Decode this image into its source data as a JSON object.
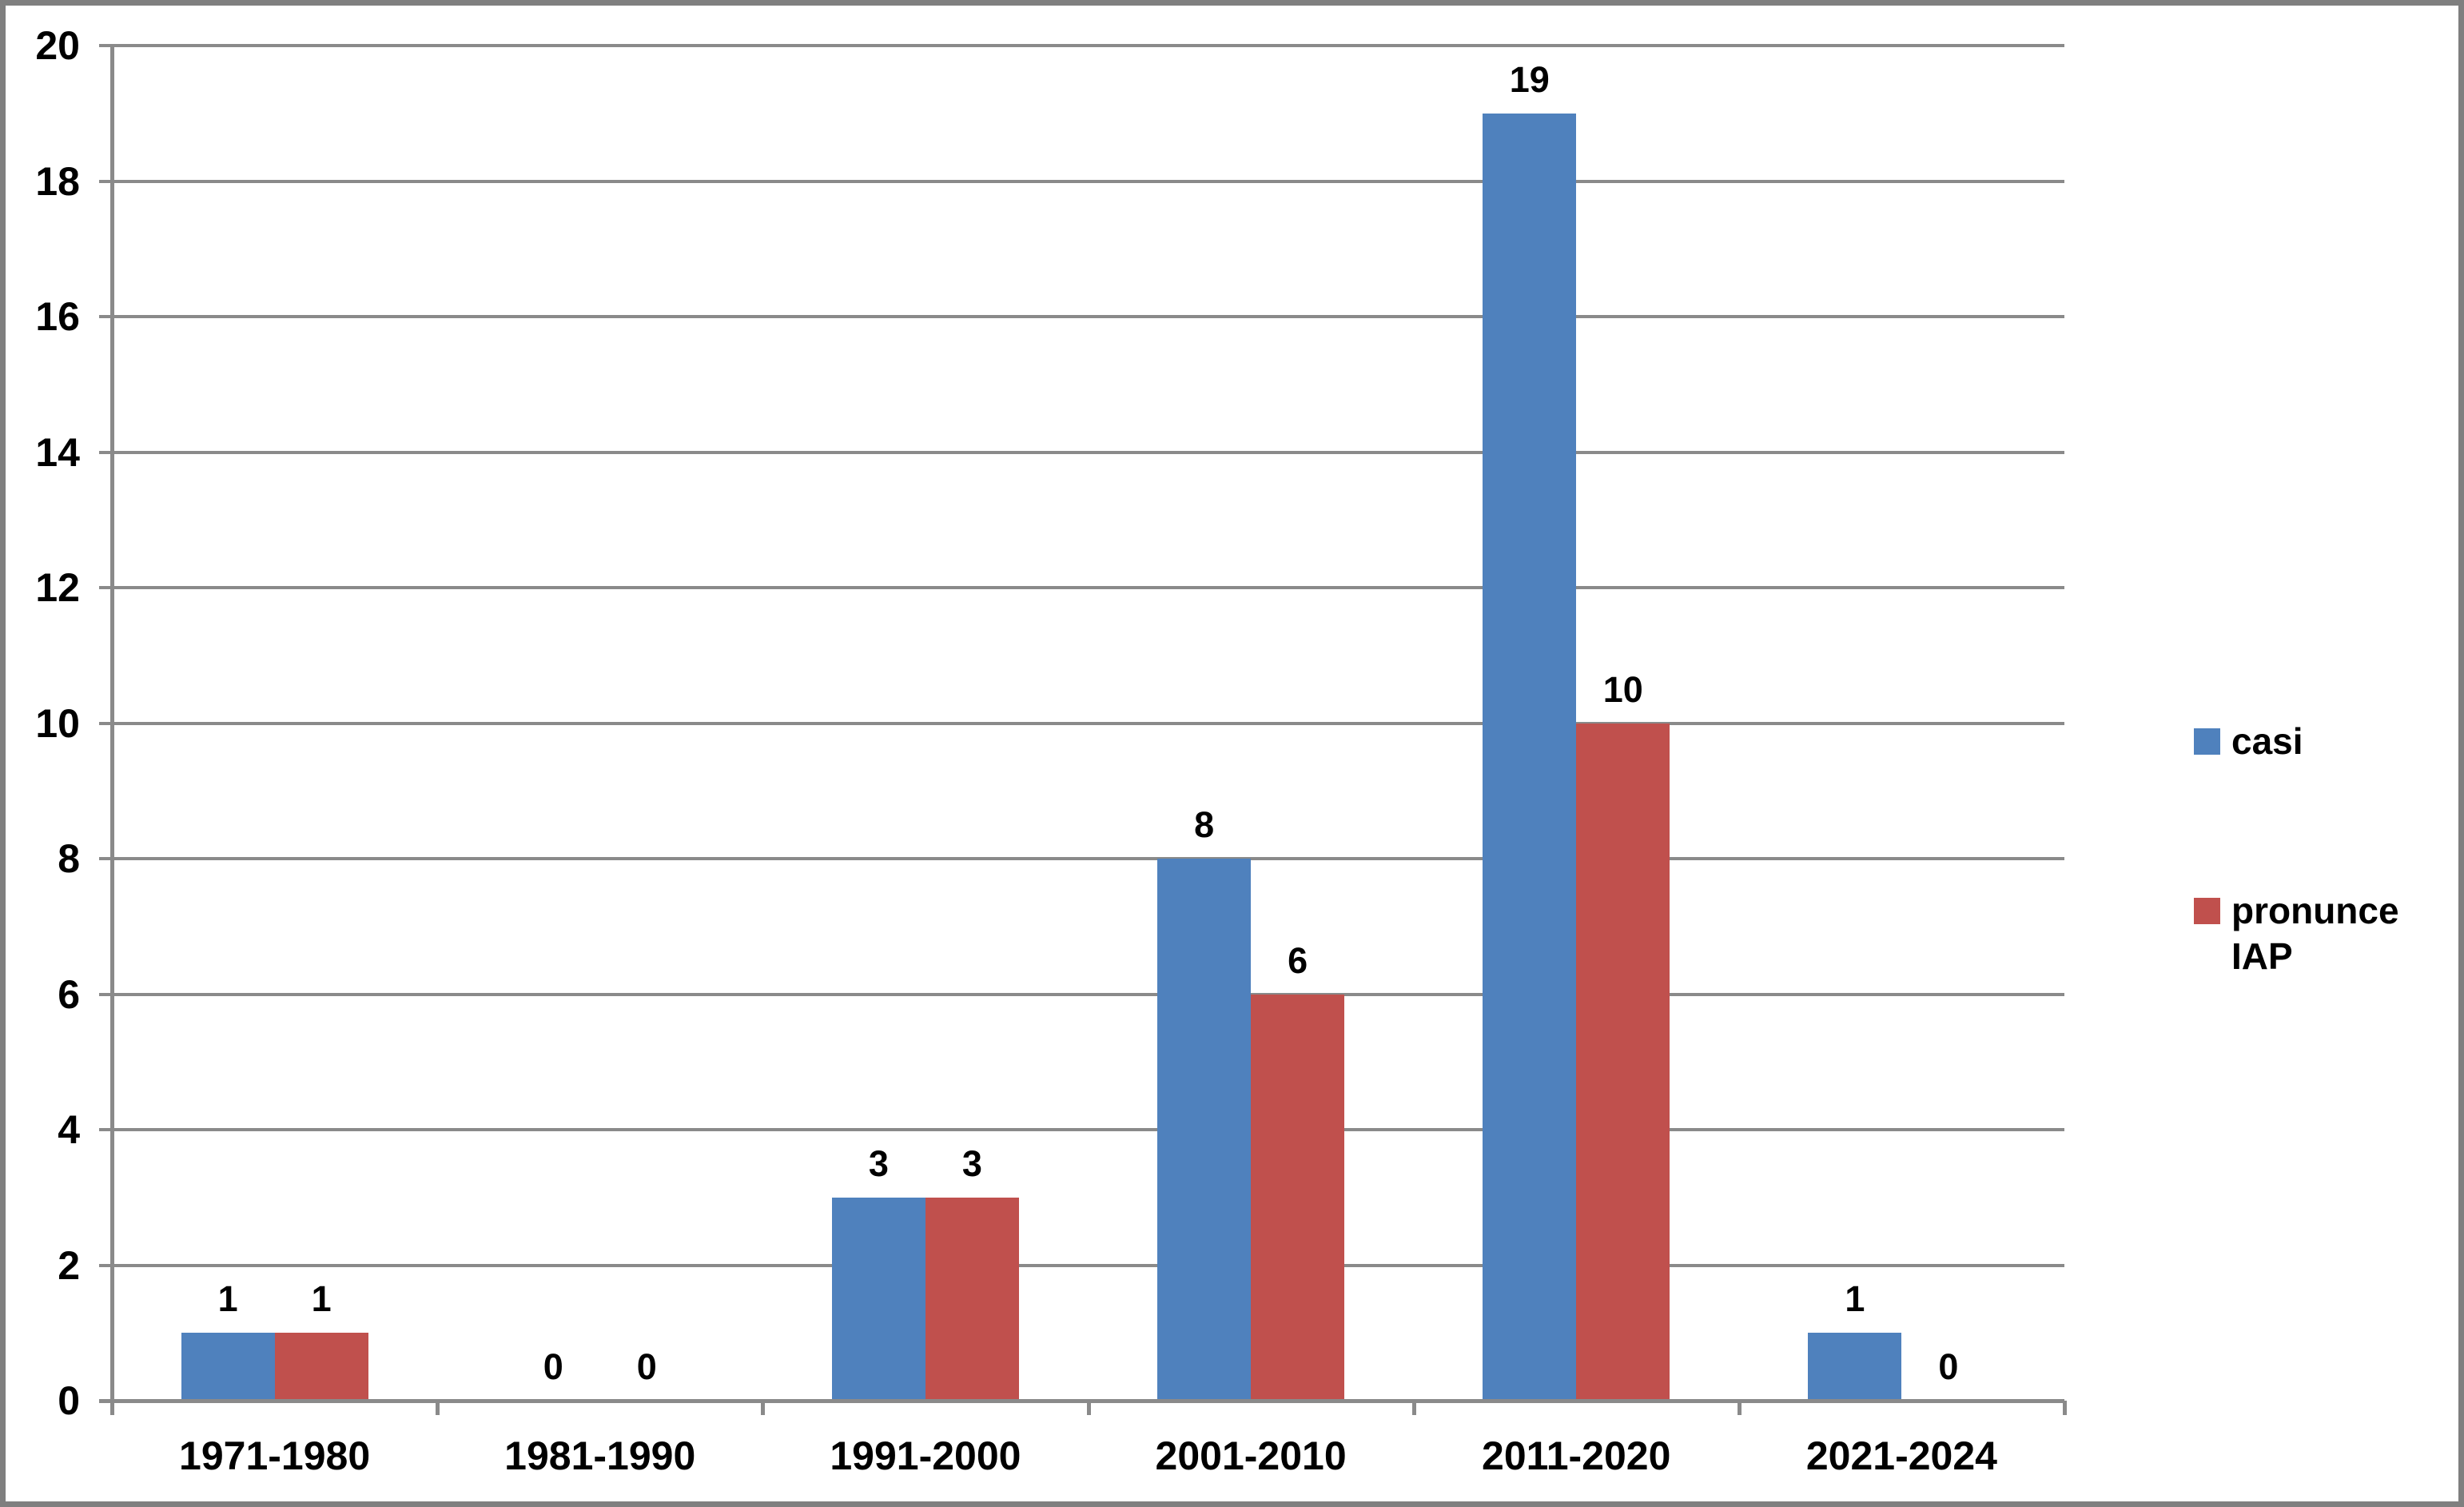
{
  "chart_data": {
    "type": "bar",
    "categories": [
      "1971-1980",
      "1981-1990",
      "1991-2000",
      "2001-2010",
      "2011-2020",
      "2021-2024"
    ],
    "series": [
      {
        "name": "casi",
        "color": "#4F81BD",
        "values": [
          1,
          0,
          3,
          8,
          19,
          1
        ]
      },
      {
        "name": "pronunce IAP",
        "color": "#C0504D",
        "values": [
          1,
          0,
          3,
          6,
          10,
          0
        ]
      }
    ],
    "ylim": [
      0,
      20
    ],
    "ytick_step": 2,
    "ytick_labels": [
      "0",
      "2",
      "4",
      "6",
      "8",
      "10",
      "12",
      "14",
      "16",
      "18",
      "20"
    ],
    "grid": true,
    "data_labels": true,
    "legend_position": "right"
  },
  "colors": {
    "series_casi": "#4F81BD",
    "series_pronunce_iap": "#C0504D",
    "gridline": "#8a8a8a",
    "axis": "#8a8a8a",
    "frame_border": "#7f7f7f",
    "background": "#ffffff",
    "text": "#000000"
  }
}
